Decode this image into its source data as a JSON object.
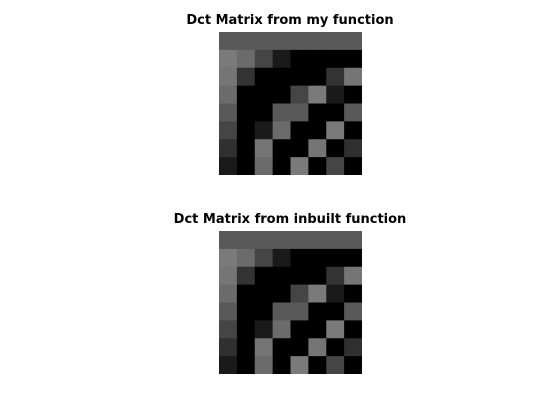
{
  "chart_data": [
    {
      "type": "heatmap",
      "title": "Dct Matrix from my function",
      "colormap": "gray",
      "rows": 8,
      "cols": 8,
      "values": [
        [
          0.35,
          0.35,
          0.35,
          0.35,
          0.35,
          0.35,
          0.35,
          0.35
        ],
        [
          0.48,
          0.42,
          0.27,
          0.1,
          0.0,
          0.0,
          0.0,
          0.0
        ],
        [
          0.46,
          0.2,
          0.0,
          0.0,
          0.0,
          0.0,
          0.2,
          0.46
        ],
        [
          0.42,
          0.0,
          0.0,
          0.0,
          0.27,
          0.48,
          0.1,
          0.0
        ],
        [
          0.35,
          0.0,
          0.0,
          0.35,
          0.35,
          0.0,
          0.0,
          0.35
        ],
        [
          0.27,
          0.0,
          0.1,
          0.42,
          0.0,
          0.0,
          0.48,
          0.0
        ],
        [
          0.19,
          0.0,
          0.46,
          0.0,
          0.0,
          0.46,
          0.0,
          0.19
        ],
        [
          0.1,
          0.0,
          0.42,
          0.0,
          0.48,
          0.0,
          0.27,
          0.0
        ]
      ]
    },
    {
      "type": "heatmap",
      "title": "Dct Matrix from inbuilt function",
      "colormap": "gray",
      "rows": 8,
      "cols": 8,
      "values": [
        [
          0.35,
          0.35,
          0.35,
          0.35,
          0.35,
          0.35,
          0.35,
          0.35
        ],
        [
          0.48,
          0.42,
          0.27,
          0.1,
          0.0,
          0.0,
          0.0,
          0.0
        ],
        [
          0.46,
          0.2,
          0.0,
          0.0,
          0.0,
          0.0,
          0.2,
          0.46
        ],
        [
          0.42,
          0.0,
          0.0,
          0.0,
          0.27,
          0.48,
          0.1,
          0.0
        ],
        [
          0.35,
          0.0,
          0.0,
          0.35,
          0.35,
          0.0,
          0.0,
          0.35
        ],
        [
          0.27,
          0.0,
          0.1,
          0.42,
          0.0,
          0.0,
          0.48,
          0.0
        ],
        [
          0.19,
          0.0,
          0.46,
          0.0,
          0.0,
          0.46,
          0.0,
          0.19
        ],
        [
          0.1,
          0.0,
          0.42,
          0.0,
          0.48,
          0.0,
          0.27,
          0.0
        ]
      ]
    }
  ]
}
